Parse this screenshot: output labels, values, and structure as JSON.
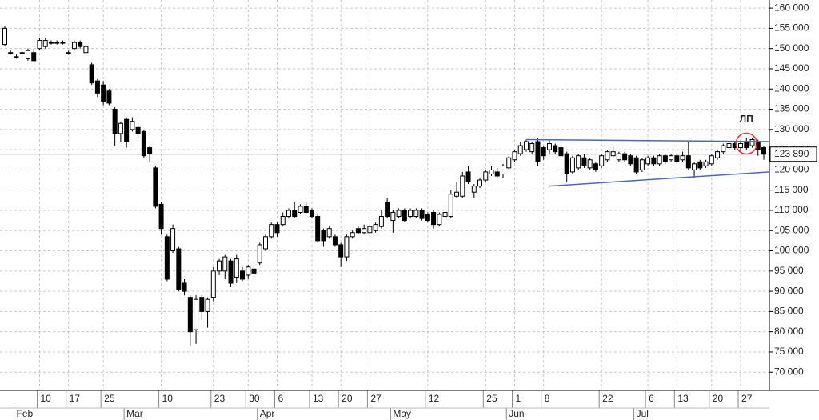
{
  "chart_data": {
    "type": "candlestick",
    "up_color": "#ffffff",
    "down_color": "#000000",
    "line_color": "#000000",
    "trend_color": "#4a67c9",
    "highlight_color": "#d9303a",
    "grid": true,
    "ylim": [
      65500,
      162000
    ],
    "yticks": [
      {
        "value": 70000,
        "label": "70 000"
      },
      {
        "value": 75000,
        "label": "75 000"
      },
      {
        "value": 80000,
        "label": "80 000"
      },
      {
        "value": 85000,
        "label": "85 000"
      },
      {
        "value": 90000,
        "label": "90 000"
      },
      {
        "value": 95000,
        "label": "95 000"
      },
      {
        "value": 100000,
        "label": "100 000"
      },
      {
        "value": 105000,
        "label": "105 000"
      },
      {
        "value": 110000,
        "label": "110 000"
      },
      {
        "value": 115000,
        "label": "115 000"
      },
      {
        "value": 120000,
        "label": "120 000"
      },
      {
        "value": 125000,
        "label": "125 000"
      },
      {
        "value": 130000,
        "label": "130 000"
      },
      {
        "value": 135000,
        "label": "135 000"
      },
      {
        "value": 140000,
        "label": "140 000"
      },
      {
        "value": 145000,
        "label": "145 000"
      },
      {
        "value": 150000,
        "label": "150 000"
      },
      {
        "value": 155000,
        "label": "155 000"
      },
      {
        "value": 160000,
        "label": "160 000"
      }
    ],
    "categories": [
      null,
      null,
      null,
      null,
      null,
      null,
      "10",
      null,
      null,
      null,
      null,
      "17",
      null,
      null,
      null,
      null,
      null,
      "25",
      null,
      null,
      null,
      null,
      null,
      null,
      null,
      null,
      null,
      "10",
      null,
      null,
      null,
      null,
      null,
      null,
      null,
      null,
      "23",
      null,
      null,
      null,
      null,
      null,
      "30",
      null,
      null,
      null,
      null,
      "6",
      null,
      null,
      null,
      null,
      null,
      "13",
      null,
      null,
      null,
      null,
      "20",
      null,
      null,
      null,
      null,
      "27",
      null,
      null,
      null,
      null,
      null,
      null,
      null,
      null,
      null,
      "12",
      null,
      null,
      null,
      null,
      null,
      null,
      null,
      null,
      null,
      "25",
      null,
      null,
      null,
      null,
      "1",
      null,
      null,
      null,
      null,
      "8",
      null,
      null,
      null,
      null,
      null,
      null,
      null,
      null,
      null,
      "22",
      null,
      null,
      null,
      null,
      null,
      null,
      null,
      "6",
      null,
      null,
      null,
      null,
      "13",
      null,
      null,
      null,
      null,
      null,
      "20",
      null,
      null,
      null,
      null,
      "27",
      null,
      null,
      null,
      null
    ],
    "months": [
      {
        "value": 2,
        "label": "Feb"
      },
      {
        "value": 21,
        "label": "Mar"
      },
      {
        "value": 44,
        "label": "Apr"
      },
      {
        "value": 67,
        "label": "May"
      },
      {
        "value": 87,
        "label": "Jun"
      },
      {
        "value": 109,
        "label": "Jul"
      }
    ],
    "ohlc": [
      [
        151000,
        155500,
        150500,
        155000
      ],
      [
        149000,
        149500,
        148500,
        149000
      ],
      [
        148000,
        148500,
        147500,
        148000
      ],
      [
        149000,
        149000,
        148500,
        149000
      ],
      [
        147500,
        150000,
        147000,
        149500
      ],
      [
        149000,
        150000,
        147000,
        147000
      ],
      [
        150000,
        152500,
        149500,
        152000
      ],
      [
        150500,
        152500,
        150000,
        152000
      ],
      [
        151500,
        152000,
        151000,
        151500
      ],
      [
        151500,
        152000,
        151000,
        151500
      ],
      [
        151500,
        152000,
        151000,
        151500
      ],
      [
        149000,
        149500,
        148500,
        149000
      ],
      [
        150000,
        152000,
        149500,
        151500
      ],
      [
        151500,
        152000,
        150000,
        150500
      ],
      [
        149000,
        151000,
        148500,
        150500
      ],
      [
        146000,
        146500,
        141000,
        141500
      ],
      [
        142000,
        142500,
        138000,
        139000
      ],
      [
        141000,
        142000,
        136000,
        137000
      ],
      [
        139500,
        140000,
        136000,
        136500
      ],
      [
        135000,
        135500,
        126000,
        129000
      ],
      [
        129000,
        132000,
        127000,
        131500
      ],
      [
        132500,
        133000,
        125500,
        127000
      ],
      [
        130000,
        133000,
        129500,
        132000
      ],
      [
        130500,
        131000,
        128000,
        129000
      ],
      [
        129500,
        130000,
        123000,
        123500
      ],
      [
        125500,
        126000,
        122000,
        124000
      ],
      [
        120500,
        121000,
        110500,
        111000
      ],
      [
        111500,
        112000,
        104000,
        105500
      ],
      [
        103500,
        104000,
        92500,
        93000
      ],
      [
        100000,
        106500,
        99500,
        105500
      ],
      [
        100500,
        101000,
        90000,
        90500
      ],
      [
        92000,
        93000,
        89000,
        90000
      ],
      [
        88500,
        89000,
        76500,
        80000
      ],
      [
        80500,
        89000,
        77000,
        88000
      ],
      [
        88500,
        89000,
        83000,
        85000
      ],
      [
        85000,
        88500,
        81000,
        88000
      ],
      [
        88500,
        96000,
        87500,
        95000
      ],
      [
        95000,
        98000,
        94000,
        97500
      ],
      [
        95000,
        99000,
        93000,
        98500
      ],
      [
        97500,
        98000,
        91000,
        92000
      ],
      [
        93500,
        99000,
        92000,
        98000
      ],
      [
        95000,
        96000,
        92500,
        93000
      ],
      [
        94000,
        96500,
        93000,
        96000
      ],
      [
        95500,
        96500,
        93000,
        94500
      ],
      [
        97000,
        102000,
        96500,
        101500
      ],
      [
        100500,
        104000,
        100000,
        103500
      ],
      [
        103500,
        107000,
        103000,
        106500
      ],
      [
        106500,
        107000,
        103500,
        104500
      ],
      [
        106500,
        109500,
        106000,
        108500
      ],
      [
        108500,
        110500,
        108000,
        110000
      ],
      [
        110000,
        112000,
        108000,
        108500
      ],
      [
        109500,
        111500,
        109000,
        111000
      ],
      [
        111000,
        112000,
        109000,
        109500
      ],
      [
        110000,
        110500,
        108000,
        108500
      ],
      [
        108500,
        109000,
        102000,
        102500
      ],
      [
        105000,
        105500,
        101000,
        102500
      ],
      [
        103500,
        106000,
        103000,
        105500
      ],
      [
        103500,
        104000,
        101000,
        101500
      ],
      [
        101500,
        102000,
        96000,
        98500
      ],
      [
        98500,
        104000,
        97500,
        103500
      ],
      [
        103500,
        105000,
        103000,
        104500
      ],
      [
        105500,
        106000,
        104000,
        104500
      ],
      [
        104500,
        106500,
        104000,
        105500
      ],
      [
        104500,
        106500,
        104000,
        106000
      ],
      [
        105000,
        107000,
        104500,
        106500
      ],
      [
        106000,
        110000,
        105500,
        108500
      ],
      [
        112000,
        113000,
        108000,
        108500
      ],
      [
        107500,
        110000,
        104500,
        109500
      ],
      [
        108500,
        110500,
        108000,
        110000
      ],
      [
        110000,
        110500,
        107000,
        107500
      ],
      [
        108500,
        110500,
        108000,
        110000
      ],
      [
        108500,
        110500,
        108000,
        110000
      ],
      [
        110000,
        110500,
        107500,
        108000
      ],
      [
        109000,
        109500,
        107000,
        107500
      ],
      [
        109500,
        110000,
        105500,
        106500
      ],
      [
        106500,
        109500,
        106000,
        109000
      ],
      [
        108500,
        110000,
        108000,
        109500
      ],
      [
        108500,
        115000,
        108000,
        114000
      ],
      [
        113500,
        117000,
        113000,
        114500
      ],
      [
        113500,
        119500,
        113000,
        118500
      ],
      [
        119500,
        121000,
        116500,
        117000
      ],
      [
        114500,
        116500,
        113000,
        116000
      ],
      [
        116000,
        118000,
        115500,
        117500
      ],
      [
        117500,
        120000,
        117000,
        119500
      ],
      [
        119000,
        121000,
        118500,
        120000
      ],
      [
        119500,
        120500,
        118000,
        118500
      ],
      [
        119000,
        121500,
        118000,
        121000
      ],
      [
        120500,
        123500,
        120000,
        123000
      ],
      [
        122500,
        125000,
        122000,
        124500
      ],
      [
        124000,
        127000,
        123500,
        126000
      ],
      [
        125000,
        127500,
        124500,
        127000
      ],
      [
        124500,
        127000,
        124000,
        126500
      ],
      [
        127000,
        128000,
        121000,
        122000
      ],
      [
        125500,
        126000,
        122500,
        123500
      ],
      [
        125000,
        127500,
        124000,
        126500
      ],
      [
        126000,
        126500,
        124000,
        124500
      ],
      [
        125500,
        126000,
        123000,
        123500
      ],
      [
        124000,
        124500,
        117000,
        119000
      ],
      [
        119500,
        123500,
        119000,
        123000
      ],
      [
        120500,
        124000,
        120000,
        123500
      ],
      [
        123000,
        124000,
        120500,
        121000
      ],
      [
        120500,
        123000,
        120000,
        122500
      ],
      [
        121500,
        122000,
        119500,
        120000
      ],
      [
        121000,
        124000,
        120500,
        123500
      ],
      [
        122500,
        125000,
        122000,
        124500
      ],
      [
        123500,
        126000,
        123000,
        124500
      ],
      [
        122500,
        124500,
        122000,
        124000
      ],
      [
        124000,
        124500,
        122000,
        122500
      ],
      [
        123500,
        124000,
        121000,
        121500
      ],
      [
        123000,
        123500,
        119000,
        119500
      ],
      [
        120000,
        123000,
        119500,
        122500
      ],
      [
        121500,
        123500,
        121000,
        123000
      ],
      [
        123000,
        123500,
        121000,
        121500
      ],
      [
        121500,
        124000,
        121000,
        123500
      ],
      [
        123500,
        124000,
        121500,
        122000
      ],
      [
        122500,
        124000,
        122000,
        123500
      ],
      [
        123500,
        124000,
        121500,
        122000
      ],
      [
        122500,
        124500,
        122000,
        123500
      ],
      [
        123500,
        127000,
        120000,
        120500
      ],
      [
        120000,
        122000,
        118000,
        121500
      ],
      [
        122000,
        122500,
        120000,
        120500
      ],
      [
        121000,
        122500,
        120500,
        122000
      ],
      [
        121500,
        124000,
        121000,
        123500
      ],
      [
        123000,
        125000,
        122500,
        124500
      ],
      [
        124500,
        126500,
        124000,
        126000
      ],
      [
        125500,
        127000,
        125000,
        126500
      ],
      [
        126500,
        127000,
        125000,
        125500
      ],
      [
        125500,
        127000,
        124500,
        126500
      ],
      [
        127000,
        128000,
        125000,
        125500
      ],
      [
        126000,
        128000,
        125500,
        127500
      ],
      [
        127000,
        127500,
        123500,
        125000
      ],
      [
        125500,
        126000,
        122500,
        123890
      ]
    ],
    "trendlines": [
      {
        "x": [
          90,
          131
        ],
        "y": [
          127500,
          127000
        ]
      },
      {
        "x": [
          94,
          131
        ],
        "y": [
          116000,
          119500
        ]
      }
    ],
    "last_price": {
      "value": 123890,
      "label": "123 890"
    },
    "highlight": {
      "x": 128,
      "y": 126500
    },
    "annotation": "ЛП"
  }
}
